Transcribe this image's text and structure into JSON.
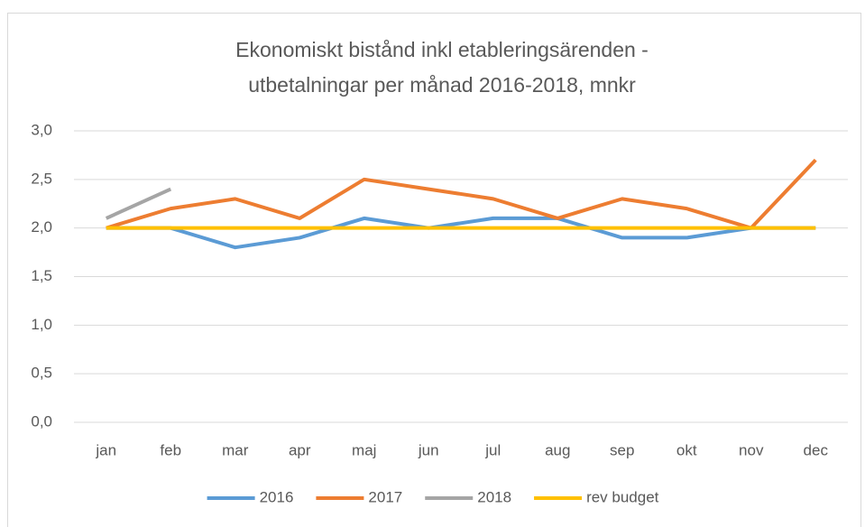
{
  "chart_data": {
    "type": "line",
    "title": [
      "Ekonomiskt bistånd inkl etableringsärenden -",
      "utbetalningar per månad 2016-2018, mnkr"
    ],
    "categories": [
      "jan",
      "feb",
      "mar",
      "apr",
      "maj",
      "jun",
      "jul",
      "aug",
      "sep",
      "okt",
      "nov",
      "dec"
    ],
    "series": [
      {
        "name": "2016",
        "color": "#5b9bd5",
        "values": [
          2.0,
          2.0,
          1.8,
          1.9,
          2.1,
          2.0,
          2.1,
          2.1,
          1.9,
          1.9,
          2.0,
          2.0
        ]
      },
      {
        "name": "2017",
        "color": "#ed7d31",
        "values": [
          2.0,
          2.2,
          2.3,
          2.1,
          2.5,
          2.4,
          2.3,
          2.1,
          2.3,
          2.2,
          2.0,
          2.7
        ]
      },
      {
        "name": "2018",
        "color": "#a5a5a5",
        "values": [
          2.1,
          2.4,
          null,
          null,
          null,
          null,
          null,
          null,
          null,
          null,
          null,
          null
        ]
      },
      {
        "name": "rev budget",
        "color": "#ffc000",
        "values": [
          2.0,
          2.0,
          2.0,
          2.0,
          2.0,
          2.0,
          2.0,
          2.0,
          2.0,
          2.0,
          2.0,
          2.0
        ]
      }
    ],
    "ylim": [
      0,
      3
    ],
    "yticks": [
      {
        "value": 0,
        "label": "0,0"
      },
      {
        "value": 0.5,
        "label": "0,5"
      },
      {
        "value": 1,
        "label": "1,0"
      },
      {
        "value": 1.5,
        "label": "1,5"
      },
      {
        "value": 2,
        "label": "2,0"
      },
      {
        "value": 2.5,
        "label": "2,5"
      },
      {
        "value": 3,
        "label": "3,0"
      }
    ],
    "grid": true,
    "legend": "bottom"
  }
}
